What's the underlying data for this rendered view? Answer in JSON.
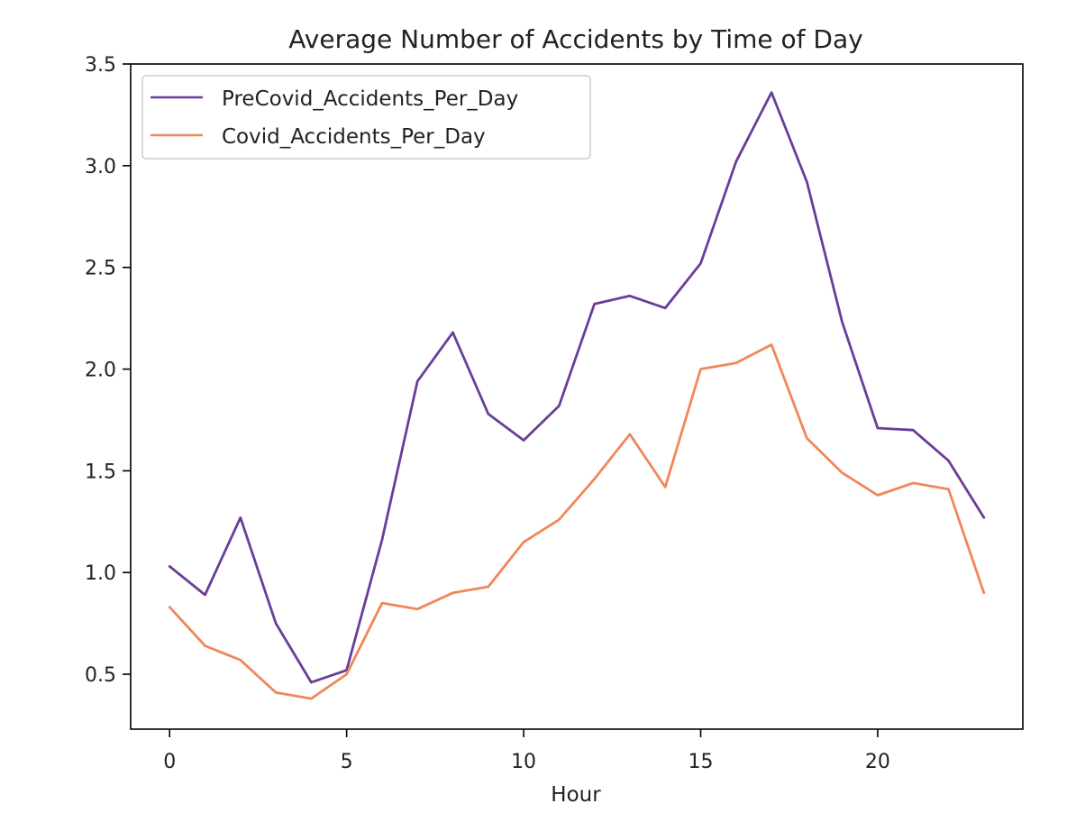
{
  "chart_data": {
    "type": "line",
    "title": "Average Number of Accidents by Time of Day",
    "xlabel": "Hour",
    "ylabel": "",
    "xlim": [
      -1.1,
      24.1
    ],
    "ylim": [
      0.23,
      3.5
    ],
    "xticks": [
      0,
      5,
      10,
      15,
      20
    ],
    "yticks": [
      0.5,
      1.0,
      1.5,
      2.0,
      2.5,
      3.0,
      3.5
    ],
    "ytick_labels": [
      "0.5",
      "1.0",
      "1.5",
      "2.0",
      "2.5",
      "3.0",
      "3.5"
    ],
    "grid": false,
    "legend_position": "upper-left",
    "x": [
      0,
      1,
      2,
      3,
      4,
      5,
      6,
      7,
      8,
      9,
      10,
      11,
      12,
      13,
      14,
      15,
      16,
      17,
      18,
      19,
      20,
      21,
      22,
      23
    ],
    "series": [
      {
        "name": "PreCovid_Accidents_Per_Day",
        "color": "#6a3d9a",
        "values": [
          1.03,
          0.89,
          1.27,
          0.75,
          0.46,
          0.52,
          1.16,
          1.94,
          2.18,
          1.78,
          1.65,
          1.82,
          2.32,
          2.36,
          2.3,
          2.52,
          3.02,
          3.36,
          2.92,
          2.23,
          1.71,
          1.7,
          1.55,
          1.27
        ]
      },
      {
        "name": "Covid_Accidents_Per_Day",
        "color": "#f0875a",
        "values": [
          0.83,
          0.64,
          0.57,
          0.41,
          0.38,
          0.5,
          0.85,
          0.82,
          0.9,
          0.93,
          1.15,
          1.26,
          1.46,
          1.68,
          1.42,
          2.0,
          2.03,
          2.12,
          1.66,
          1.49,
          1.38,
          1.44,
          1.41,
          0.9
        ]
      }
    ]
  }
}
